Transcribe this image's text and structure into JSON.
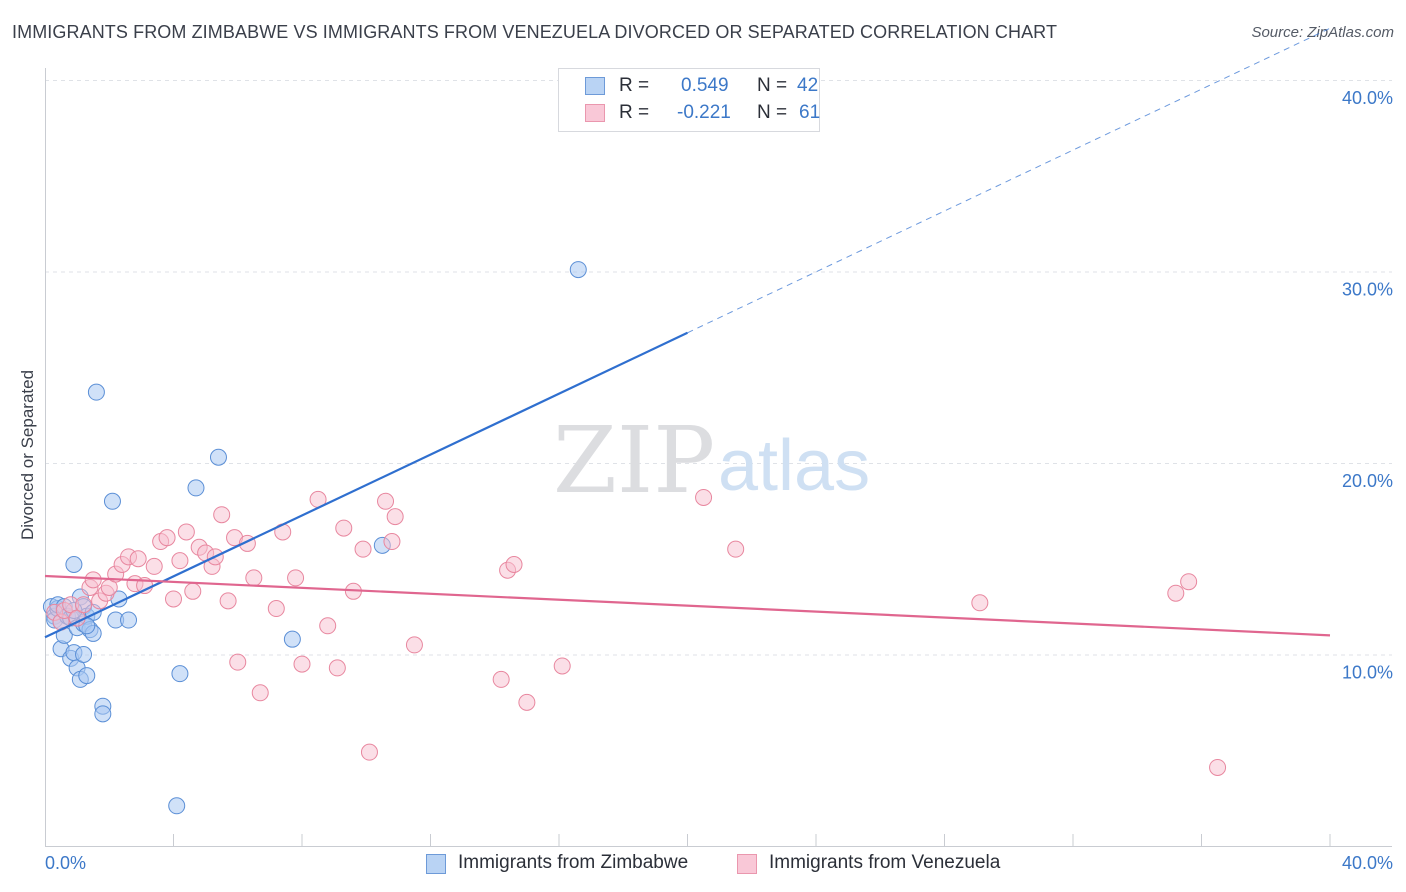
{
  "title": "IMMIGRANTS FROM ZIMBABWE VS IMMIGRANTS FROM VENEZUELA DIVORCED OR SEPARATED CORRELATION CHART",
  "source": "Source: ZipAtlas.com",
  "watermark": {
    "zip": "ZIP",
    "atlas": "atlas"
  },
  "colors": {
    "zimbabwe_fill": "#a9c9f2",
    "zimbabwe_stroke": "#5b8fd6",
    "zimbabwe_line": "#2f6fcf",
    "venezuela_fill": "#f7bfd0",
    "venezuela_stroke": "#e8879f",
    "venezuela_line": "#e0668f",
    "axis_text": "#3c78c8",
    "grid": "#dfe2e7"
  },
  "legend": {
    "rows": [
      {
        "r_label": "R =",
        "r_value": "0.549",
        "n_label": "N =",
        "n_value": "42"
      },
      {
        "r_label": "R =",
        "r_value": "-0.221",
        "n_label": "N =",
        "n_value": "61"
      }
    ]
  },
  "bottom_legend": {
    "zimbabwe": "Immigrants from Zimbabwe",
    "venezuela": "Immigrants from Venezuela"
  },
  "chart_data": {
    "type": "scatter",
    "title": "IMMIGRANTS FROM ZIMBABWE VS IMMIGRANTS FROM VENEZUELA DIVORCED OR SEPARATED CORRELATION CHART",
    "xlabel": "",
    "ylabel": "Divorced or Separated",
    "xlim": [
      0,
      40
    ],
    "ylim": [
      0,
      40
    ],
    "x_tick_labels": [
      "0.0%",
      "40.0%"
    ],
    "y_tick_labels": [
      "10.0%",
      "20.0%",
      "30.0%",
      "40.0%"
    ],
    "y_ticks": [
      10,
      20,
      30,
      40
    ],
    "grid": true,
    "legend_position": "top-center",
    "series": [
      {
        "name": "Immigrants from Zimbabwe",
        "r": 0.549,
        "n": 42,
        "trend": {
          "x0": 0.0,
          "y0": 10.9,
          "x1": 20.0,
          "y1": 26.8,
          "dashed_to_x": 40.0
        },
        "points": [
          [
            0.2,
            12.5
          ],
          [
            0.3,
            12.0
          ],
          [
            0.3,
            11.8
          ],
          [
            0.4,
            12.4
          ],
          [
            0.4,
            12.6
          ],
          [
            0.5,
            11.7
          ],
          [
            0.5,
            10.3
          ],
          [
            0.6,
            11.0
          ],
          [
            0.6,
            12.5
          ],
          [
            0.7,
            12.0
          ],
          [
            0.8,
            9.8
          ],
          [
            0.8,
            11.9
          ],
          [
            0.9,
            14.7
          ],
          [
            0.9,
            10.1
          ],
          [
            1.0,
            9.3
          ],
          [
            1.0,
            11.4
          ],
          [
            1.1,
            13.0
          ],
          [
            1.2,
            12.5
          ],
          [
            1.2,
            11.6
          ],
          [
            1.1,
            8.7
          ],
          [
            1.2,
            10.0
          ],
          [
            1.3,
            8.9
          ],
          [
            1.3,
            12.0
          ],
          [
            1.4,
            11.3
          ],
          [
            1.5,
            11.1
          ],
          [
            1.5,
            12.2
          ],
          [
            1.6,
            23.7
          ],
          [
            1.8,
            7.3
          ],
          [
            1.8,
            6.9
          ],
          [
            2.1,
            18.0
          ],
          [
            2.2,
            11.8
          ],
          [
            2.3,
            12.9
          ],
          [
            2.6,
            11.8
          ],
          [
            4.1,
            2.1
          ],
          [
            4.2,
            9.0
          ],
          [
            4.7,
            18.7
          ],
          [
            5.4,
            20.3
          ],
          [
            7.7,
            10.8
          ],
          [
            10.5,
            15.7
          ],
          [
            16.6,
            30.1
          ],
          [
            0.9,
            12.3
          ],
          [
            1.3,
            11.5
          ]
        ]
      },
      {
        "name": "Immigrants from Venezuela",
        "r": -0.221,
        "n": 61,
        "trend": {
          "x0": 0.0,
          "y0": 14.1,
          "x1": 40.0,
          "y1": 11.0
        },
        "points": [
          [
            0.3,
            12.2
          ],
          [
            0.5,
            11.7
          ],
          [
            0.6,
            12.3
          ],
          [
            0.8,
            12.6
          ],
          [
            1.0,
            11.9
          ],
          [
            1.2,
            12.6
          ],
          [
            1.4,
            13.5
          ],
          [
            1.5,
            13.9
          ],
          [
            1.7,
            12.8
          ],
          [
            1.9,
            13.2
          ],
          [
            2.0,
            13.5
          ],
          [
            2.2,
            14.2
          ],
          [
            2.4,
            14.7
          ],
          [
            2.6,
            15.1
          ],
          [
            2.8,
            13.7
          ],
          [
            2.9,
            15.0
          ],
          [
            3.1,
            13.6
          ],
          [
            3.4,
            14.6
          ],
          [
            3.6,
            15.9
          ],
          [
            3.8,
            16.1
          ],
          [
            4.0,
            12.9
          ],
          [
            4.2,
            14.9
          ],
          [
            4.4,
            16.4
          ],
          [
            4.6,
            13.3
          ],
          [
            4.8,
            15.6
          ],
          [
            5.0,
            15.3
          ],
          [
            5.2,
            14.6
          ],
          [
            5.3,
            15.1
          ],
          [
            5.5,
            17.3
          ],
          [
            5.7,
            12.8
          ],
          [
            5.9,
            16.1
          ],
          [
            6.0,
            9.6
          ],
          [
            6.3,
            15.8
          ],
          [
            6.5,
            14.0
          ],
          [
            6.7,
            8.0
          ],
          [
            7.2,
            12.4
          ],
          [
            7.4,
            16.4
          ],
          [
            7.8,
            14.0
          ],
          [
            8.0,
            9.5
          ],
          [
            8.5,
            18.1
          ],
          [
            8.8,
            11.5
          ],
          [
            9.1,
            9.3
          ],
          [
            9.3,
            16.6
          ],
          [
            9.6,
            13.3
          ],
          [
            9.9,
            15.5
          ],
          [
            10.1,
            4.9
          ],
          [
            10.6,
            18.0
          ],
          [
            10.8,
            15.9
          ],
          [
            10.9,
            17.2
          ],
          [
            11.5,
            10.5
          ],
          [
            14.2,
            8.7
          ],
          [
            14.4,
            14.4
          ],
          [
            14.6,
            14.7
          ],
          [
            15.0,
            7.5
          ],
          [
            16.1,
            9.4
          ],
          [
            20.5,
            18.2
          ],
          [
            21.5,
            15.5
          ],
          [
            29.1,
            12.7
          ],
          [
            35.2,
            13.2
          ],
          [
            35.6,
            13.8
          ],
          [
            36.5,
            4.1
          ]
        ]
      }
    ]
  }
}
